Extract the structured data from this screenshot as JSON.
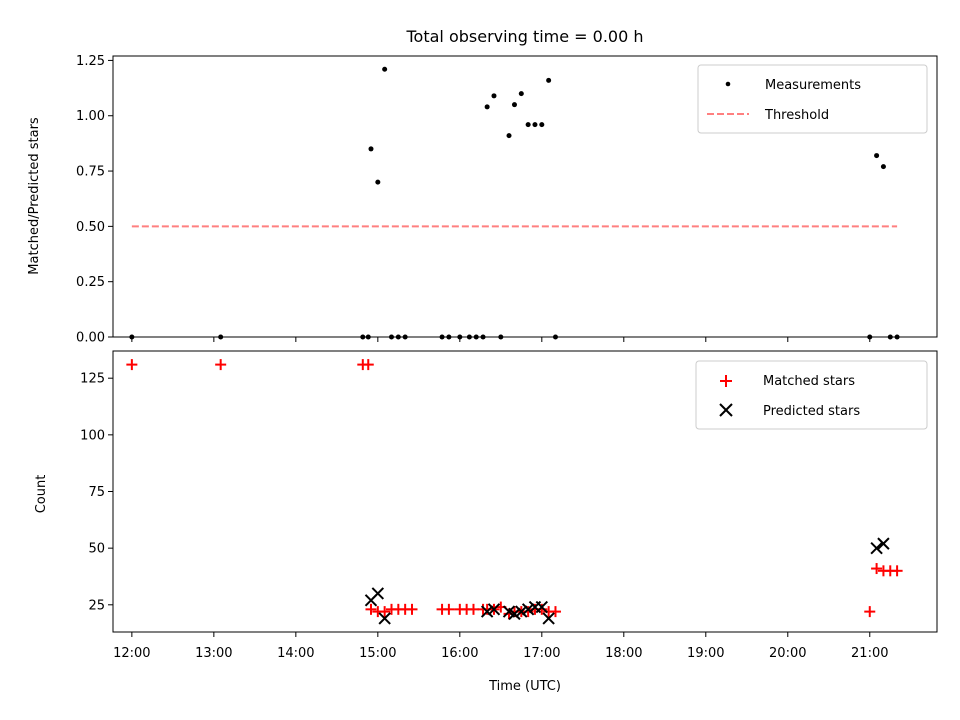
{
  "title": "Total observing time = 0.00 h",
  "chart_data": [
    {
      "type": "scatter",
      "panel": "top",
      "ylabel": "Matched/Predicted stars",
      "xlabel": "",
      "ylim": [
        0,
        1.27
      ],
      "yticks": [
        0.0,
        0.25,
        0.5,
        0.75,
        1.0,
        1.25
      ],
      "ytick_labels": [
        "0.00",
        "0.25",
        "0.50",
        "0.75",
        "1.00",
        "1.25"
      ],
      "xlim_hours": [
        11.77,
        21.82
      ],
      "legend_position": "top-right",
      "legend": [
        "Measurements",
        "Threshold"
      ],
      "series": [
        {
          "name": "Measurements",
          "kind": "points",
          "color": "#000000",
          "points": [
            [
              "12:00",
              0.0
            ],
            [
              "13:05",
              0.0
            ],
            [
              "14:49",
              0.0
            ],
            [
              "14:53",
              0.0
            ],
            [
              "14:55",
              0.85
            ],
            [
              "15:00",
              0.7
            ],
            [
              "15:05",
              1.21
            ],
            [
              "15:10",
              0.0
            ],
            [
              "15:15",
              0.0
            ],
            [
              "15:20",
              0.0
            ],
            [
              "15:47",
              0.0
            ],
            [
              "15:52",
              0.0
            ],
            [
              "16:00",
              0.0
            ],
            [
              "16:07",
              0.0
            ],
            [
              "16:12",
              0.0
            ],
            [
              "16:17",
              0.0
            ],
            [
              "16:20",
              1.04
            ],
            [
              "16:25",
              1.09
            ],
            [
              "16:30",
              0.0
            ],
            [
              "16:36",
              0.91
            ],
            [
              "16:40",
              1.05
            ],
            [
              "16:45",
              1.1
            ],
            [
              "16:50",
              0.96
            ],
            [
              "16:55",
              0.96
            ],
            [
              "17:00",
              0.96
            ],
            [
              "17:05",
              1.16
            ],
            [
              "17:10",
              0.0
            ],
            [
              "21:00",
              0.0
            ],
            [
              "21:05",
              0.82
            ],
            [
              "21:10",
              0.77
            ],
            [
              "21:15",
              0.0
            ],
            [
              "21:20",
              0.0
            ]
          ]
        },
        {
          "name": "Threshold",
          "kind": "dashed-line",
          "color": "#ff7f7f",
          "x": [
            "12:00",
            "21:20"
          ],
          "y": [
            0.5,
            0.5
          ]
        }
      ]
    },
    {
      "type": "scatter",
      "panel": "bottom",
      "xlabel": "Time (UTC)",
      "ylabel": "Count",
      "ylim": [
        13,
        137
      ],
      "yticks": [
        25,
        50,
        75,
        100,
        125
      ],
      "ytick_labels": [
        "25",
        "50",
        "75",
        "100",
        "125"
      ],
      "xticks": [
        "12:00",
        "13:00",
        "14:00",
        "15:00",
        "16:00",
        "17:00",
        "18:00",
        "19:00",
        "20:00",
        "21:00"
      ],
      "xlim_hours": [
        11.77,
        21.82
      ],
      "legend_position": "top-right",
      "legend": [
        "Matched stars",
        "Predicted stars"
      ],
      "series": [
        {
          "name": "Matched stars",
          "marker": "plus",
          "color": "#ff0000",
          "points": [
            [
              "12:00",
              131
            ],
            [
              "13:05",
              131
            ],
            [
              "14:49",
              131
            ],
            [
              "14:53",
              131
            ],
            [
              "14:55",
              23
            ],
            [
              "15:00",
              22
            ],
            [
              "15:05",
              22
            ],
            [
              "15:10",
              23
            ],
            [
              "15:15",
              23
            ],
            [
              "15:20",
              23
            ],
            [
              "15:25",
              23
            ],
            [
              "15:47",
              23
            ],
            [
              "15:52",
              23
            ],
            [
              "16:00",
              23
            ],
            [
              "16:05",
              23
            ],
            [
              "16:10",
              23
            ],
            [
              "16:17",
              23
            ],
            [
              "16:20",
              23
            ],
            [
              "16:25",
              23
            ],
            [
              "16:30",
              24
            ],
            [
              "16:36",
              21
            ],
            [
              "16:40",
              22
            ],
            [
              "16:45",
              22
            ],
            [
              "16:50",
              22
            ],
            [
              "16:55",
              23
            ],
            [
              "17:00",
              23
            ],
            [
              "17:05",
              22
            ],
            [
              "17:10",
              22
            ],
            [
              "21:00",
              22
            ],
            [
              "21:05",
              41
            ],
            [
              "21:10",
              40
            ],
            [
              "21:15",
              40
            ],
            [
              "21:20",
              40
            ]
          ]
        },
        {
          "name": "Predicted stars",
          "marker": "x",
          "color": "#000000",
          "points": [
            [
              "14:55",
              27
            ],
            [
              "15:00",
              30
            ],
            [
              "15:05",
              19
            ],
            [
              "16:20",
              22
            ],
            [
              "16:25",
              23
            ],
            [
              "16:36",
              22
            ],
            [
              "16:40",
              21
            ],
            [
              "16:45",
              22
            ],
            [
              "16:50",
              23
            ],
            [
              "16:55",
              24
            ],
            [
              "17:00",
              24
            ],
            [
              "17:05",
              19
            ],
            [
              "21:05",
              50
            ],
            [
              "21:10",
              52
            ]
          ]
        }
      ]
    }
  ]
}
